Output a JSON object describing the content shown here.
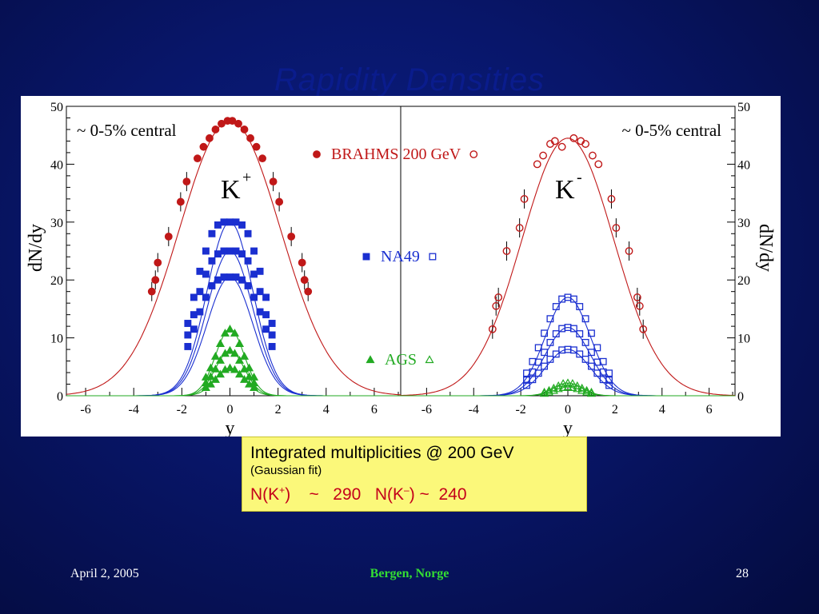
{
  "slide": {
    "title": "Rapidity Densities",
    "footer_date": "April 2, 2005",
    "footer_center": "Bergen, Norge",
    "page_number": "28",
    "colors": {
      "background": "#08166a",
      "brahms": "#c01818",
      "na49": "#1a2fd0",
      "ags": "#22aa22",
      "footer_center": "#33dd33",
      "box_fill": "#fbf87a",
      "box_highlight": "#c4001a"
    }
  },
  "info_box": {
    "line1": "Integrated multiplicities @ 200 GeV",
    "line2": "(Gaussian fit)",
    "kplus_label": "N(K",
    "kplus_sup": "+",
    "kplus_value": ")    ~   290",
    "kminus_label": "N(K",
    "kminus_sup": "–",
    "kminus_value": ") ~  240"
  },
  "chart_data": [
    {
      "type": "scatter",
      "panel": "K+",
      "particle_label": "K",
      "particle_sup": "+",
      "centrality": "~ 0-5% central",
      "xlabel": "y",
      "ylabel": "dN/dy",
      "xlim": [
        -6.8,
        7.1
      ],
      "ylim": [
        0,
        50
      ],
      "xticks": [
        "-6",
        "-4",
        "-2",
        "0",
        "2",
        "4",
        "6"
      ],
      "yticks": [
        "0",
        "10",
        "20",
        "30",
        "40",
        "50"
      ],
      "legend": [
        {
          "label": "BRAHMS 200 GeV",
          "marker": "circle-filled"
        },
        {
          "label": "NA49",
          "marker": "square-filled"
        },
        {
          "label": "AGS",
          "marker": "triangle-filled"
        }
      ],
      "series": [
        {
          "name": "BRAHMS 200 GeV",
          "marker": "circle-filled",
          "amplitude": 47.5,
          "sigma": 2.1,
          "x": [
            -3.25,
            -3.1,
            -3.0,
            -2.55,
            -2.05,
            -1.8,
            -1.35,
            -1.1,
            -0.85,
            -0.6,
            -0.35,
            -0.1,
            0.1,
            0.35,
            0.6,
            0.85,
            1.1,
            1.35,
            1.8,
            2.05,
            2.55,
            3.0,
            3.1,
            3.25
          ],
          "y": [
            18,
            20,
            23,
            27.5,
            33.5,
            37,
            41,
            43,
            44.5,
            46,
            47,
            47.5,
            47.5,
            47,
            46,
            44.5,
            43,
            41,
            37,
            33.5,
            27.5,
            23,
            20,
            18
          ]
        },
        {
          "name": "NA49 (upper)",
          "marker": "square-filled",
          "amplitude": 30,
          "sigma": 0.95,
          "x": [
            -1.75,
            -1.5,
            -1.25,
            -1.0,
            -0.75,
            -0.5,
            -0.25,
            0,
            0.25,
            0.5,
            0.75,
            1.0,
            1.25,
            1.5,
            1.75
          ],
          "y": [
            12.5,
            17,
            21.5,
            25,
            28,
            29.5,
            30,
            30,
            30,
            29.5,
            28,
            25,
            21.5,
            17,
            12.5
          ]
        },
        {
          "name": "NA49 (middle)",
          "marker": "square-filled",
          "amplitude": 25,
          "sigma": 0.95,
          "x": [
            -1.75,
            -1.5,
            -1.25,
            -1.0,
            -0.75,
            -0.5,
            -0.25,
            0,
            0.25,
            0.5,
            0.75,
            1.0,
            1.25,
            1.5,
            1.75
          ],
          "y": [
            10.5,
            14,
            18,
            21,
            23.3,
            24.5,
            25,
            25,
            25,
            24.5,
            23.3,
            21,
            18,
            14,
            10.5
          ]
        },
        {
          "name": "NA49 (lower)",
          "marker": "square-filled",
          "amplitude": 20.5,
          "sigma": 0.95,
          "x": [
            -1.75,
            -1.5,
            -1.25,
            -1.0,
            -0.75,
            -0.5,
            -0.25,
            0,
            0.25,
            0.5,
            0.75,
            1.0,
            1.25,
            1.5,
            1.75
          ],
          "y": [
            8.5,
            11.5,
            14.5,
            17,
            19,
            20,
            20.5,
            20.5,
            20.5,
            20,
            19,
            17,
            14.5,
            11.5,
            8.5
          ]
        },
        {
          "name": "AGS (upper)",
          "marker": "triangle-filled",
          "amplitude": 11.5,
          "sigma": 0.6,
          "x": [
            -1.0,
            -0.8,
            -0.6,
            -0.4,
            -0.2,
            0,
            0.2,
            0.4,
            0.6,
            0.8,
            1.0
          ],
          "y": [
            3.2,
            4.8,
            6.8,
            9,
            10.8,
            11.5,
            10.8,
            9,
            6.8,
            4.8,
            3.2
          ]
        },
        {
          "name": "AGS (middle)",
          "marker": "triangle-filled",
          "amplitude": 7.8,
          "sigma": 0.6,
          "x": [
            -1.0,
            -0.8,
            -0.6,
            -0.4,
            -0.2,
            0,
            0.2,
            0.4,
            0.6,
            0.8,
            1.0
          ],
          "y": [
            2.2,
            3.3,
            4.6,
            6.1,
            7.3,
            7.8,
            7.3,
            6.1,
            4.6,
            3.3,
            2.2
          ]
        },
        {
          "name": "AGS (lower)",
          "marker": "triangle-filled",
          "amplitude": 4.8,
          "sigma": 0.6,
          "x": [
            -1.0,
            -0.8,
            -0.6,
            -0.4,
            -0.2,
            0,
            0.2,
            0.4,
            0.6,
            0.8,
            1.0
          ],
          "y": [
            1.4,
            2,
            2.8,
            3.7,
            4.5,
            4.8,
            4.5,
            3.7,
            2.8,
            2,
            1.4
          ]
        }
      ]
    },
    {
      "type": "scatter",
      "panel": "K-",
      "particle_label": "K",
      "particle_sup": "-",
      "centrality": "~ 0-5% central",
      "xlabel": "y",
      "ylabel": "dN/dy",
      "xlim": [
        -7.1,
        7.1
      ],
      "ylim": [
        0,
        50
      ],
      "xticks": [
        "-6",
        "-4",
        "-2",
        "0",
        "2",
        "4",
        "6"
      ],
      "yticks": [
        "0",
        "10",
        "20",
        "30",
        "40",
        "50"
      ],
      "legend": [
        {
          "label": "BRAHMS 200 GeV",
          "marker": "circle-open"
        },
        {
          "label": "NA49",
          "marker": "square-open"
        },
        {
          "label": "AGS",
          "marker": "triangle-open"
        }
      ],
      "series": [
        {
          "name": "BRAHMS 200 GeV",
          "marker": "circle-open",
          "amplitude": 44.5,
          "sigma": 1.95,
          "x": [
            -3.2,
            -3.05,
            -2.95,
            -2.6,
            -2.05,
            -1.85,
            -1.3,
            -1.05,
            -0.75,
            -0.55,
            -0.25,
            0.25,
            0.55,
            0.75,
            1.05,
            1.3,
            1.85,
            2.05,
            2.6,
            2.95,
            3.05,
            3.2
          ],
          "y": [
            11.5,
            15.5,
            17,
            25,
            29,
            34,
            40,
            41.5,
            43.5,
            44,
            43,
            44.5,
            44,
            43.5,
            41.5,
            40,
            34,
            29,
            25,
            17,
            15.5,
            11.5
          ]
        },
        {
          "name": "NA49 (upper)",
          "marker": "square-open",
          "amplitude": 17,
          "sigma": 0.95,
          "x": [
            -1.75,
            -1.5,
            -1.25,
            -1.0,
            -0.75,
            -0.5,
            -0.25,
            0,
            0.25,
            0.5,
            0.75,
            1.0,
            1.25,
            1.5,
            1.75
          ],
          "y": [
            3.9,
            5.9,
            8.3,
            10.8,
            13.3,
            15.4,
            16.7,
            17,
            16.7,
            15.4,
            13.3,
            10.8,
            8.3,
            5.9,
            3.9
          ]
        },
        {
          "name": "NA49 (middle)",
          "marker": "square-open",
          "amplitude": 11.8,
          "sigma": 0.95,
          "x": [
            -1.75,
            -1.5,
            -1.25,
            -1.0,
            -0.75,
            -0.5,
            -0.25,
            0,
            0.25,
            0.5,
            0.75,
            1.0,
            1.25,
            1.5,
            1.75
          ],
          "y": [
            2.7,
            4.1,
            5.8,
            7.5,
            9.2,
            10.7,
            11.6,
            11.8,
            11.6,
            10.7,
            9.2,
            7.5,
            5.8,
            4.1,
            2.7
          ]
        },
        {
          "name": "NA49 (lower)",
          "marker": "square-open",
          "amplitude": 8,
          "sigma": 0.95,
          "x": [
            -1.75,
            -1.5,
            -1.25,
            -1.0,
            -0.75,
            -0.5,
            -0.25,
            0,
            0.25,
            0.5,
            0.75,
            1.0,
            1.25,
            1.5,
            1.75
          ],
          "y": [
            1.8,
            2.8,
            3.9,
            5.1,
            6.3,
            7.2,
            7.9,
            8,
            7.9,
            7.2,
            6.3,
            5.1,
            3.9,
            2.8,
            1.8
          ]
        },
        {
          "name": "AGS (upper)",
          "marker": "triangle-open",
          "amplitude": 2.2,
          "sigma": 0.6,
          "x": [
            -1.0,
            -0.8,
            -0.6,
            -0.4,
            -0.2,
            0,
            0.2,
            0.4,
            0.6,
            0.8,
            1.0
          ],
          "y": [
            0.6,
            0.9,
            1.3,
            1.7,
            2.1,
            2.2,
            2.1,
            1.7,
            1.3,
            0.9,
            0.6
          ]
        },
        {
          "name": "AGS (lower)",
          "marker": "triangle-open",
          "amplitude": 1.5,
          "sigma": 0.6,
          "x": [
            -1.0,
            -0.8,
            -0.6,
            -0.4,
            -0.2,
            0,
            0.2,
            0.4,
            0.6,
            0.8,
            1.0
          ],
          "y": [
            0.4,
            0.6,
            0.9,
            1.2,
            1.4,
            1.5,
            1.4,
            1.2,
            0.9,
            0.6,
            0.4
          ]
        }
      ]
    }
  ]
}
